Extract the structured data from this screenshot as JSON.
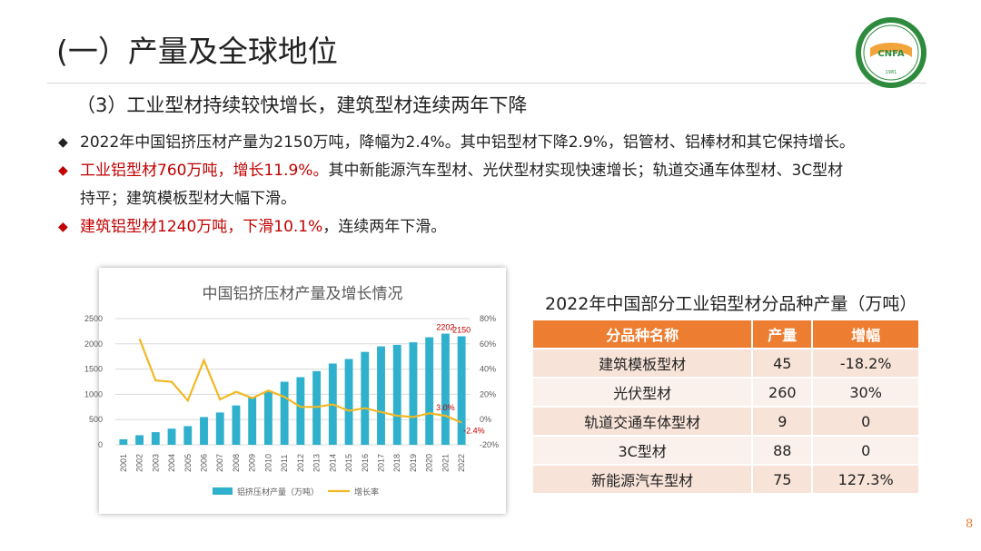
{
  "slide": {
    "title": "(一）产量及全球地位",
    "subtitle": "（3）工业型材持续较快增长，建筑型材连续两年下降",
    "page_number": "8",
    "logo": {
      "name": "cnfa-logo",
      "text": "CNFA",
      "arc_text": "中国有色金属加工工业协会",
      "year": "1981"
    },
    "colors": {
      "accent": "#ed7d31",
      "red": "#c00000",
      "bar": "#2fb0cc",
      "line": "#f1b825"
    }
  },
  "bullets": [
    {
      "mark": "◆",
      "segments": [
        {
          "text": "2022年中国铝挤压材产量为2150万吨，降幅为2.4%。其中铝型材下降2.9%，铝管材、铝棒材和其它保持增长。",
          "red": false
        }
      ]
    },
    {
      "mark": "◆",
      "segments": [
        {
          "text": "工业铝型材760万吨，增长11.9%。",
          "red": true
        },
        {
          "text": "其中新能源汽车型材、光伏型材实现快速增长；轨道交通车体型材、3C型材",
          "red": false
        }
      ]
    },
    {
      "mark": "",
      "segments": [
        {
          "text": "持平；建筑模板型材大幅下滑。",
          "red": false
        }
      ]
    },
    {
      "mark": "◆",
      "segments": [
        {
          "text": "建筑铝型材1240万吨，下滑10.1%",
          "red": true
        },
        {
          "text": "，连续两年下滑。",
          "red": false
        }
      ]
    }
  ],
  "table": {
    "title": "2022年中国部分工业铝型材分品种产量（万吨）",
    "headers": [
      "分品种名称",
      "产量",
      "增幅"
    ],
    "rows": [
      [
        "建筑模板型材",
        "45",
        "-18.2%"
      ],
      [
        "光伏型材",
        "260",
        "30%"
      ],
      [
        "轨道交通车体型材",
        "9",
        "0"
      ],
      [
        "3C型材",
        "88",
        "0"
      ],
      [
        "新能源汽车型材",
        "75",
        "127.3%"
      ]
    ]
  },
  "chart_data": {
    "type": "bar",
    "title": "中国铝挤压材产量及增长情况",
    "categories": [
      "2001",
      "2002",
      "2003",
      "2004",
      "2005",
      "2006",
      "2007",
      "2008",
      "2009",
      "2010",
      "2011",
      "2012",
      "2013",
      "2014",
      "2015",
      "2016",
      "2017",
      "2018",
      "2019",
      "2020",
      "2021",
      "2022"
    ],
    "series": [
      {
        "name": "铝挤压材产量（万吨）",
        "type": "bar",
        "axis": "left",
        "values": [
          110,
          190,
          250,
          320,
          370,
          550,
          640,
          780,
          950,
          1050,
          1250,
          1340,
          1460,
          1610,
          1700,
          1840,
          1950,
          1980,
          2030,
          2130,
          2202,
          2150
        ]
      },
      {
        "name": "增长率",
        "type": "line",
        "axis": "right",
        "values": [
          null,
          64,
          31,
          30,
          15,
          47,
          16,
          22,
          17,
          23,
          18,
          10,
          10,
          12,
          7,
          9,
          6,
          3,
          2,
          5,
          3.0,
          -2.4
        ]
      }
    ],
    "data_labels": [
      {
        "series": 0,
        "index": 20,
        "text": "2202"
      },
      {
        "series": 0,
        "index": 21,
        "text": "2150"
      },
      {
        "series": 1,
        "index": 20,
        "text": "3.0%"
      },
      {
        "series": 1,
        "index": 21,
        "text": "-2.4%"
      }
    ],
    "ylim_left": [
      0,
      2500
    ],
    "yticks_left": [
      "0",
      "500",
      "1000",
      "1500",
      "2000",
      "2500"
    ],
    "ylim_right": [
      -20,
      80
    ],
    "yticks_right": [
      "-20%",
      "0%",
      "20%",
      "40%",
      "60%",
      "80%"
    ],
    "grid": true,
    "legend_position": "bottom"
  }
}
